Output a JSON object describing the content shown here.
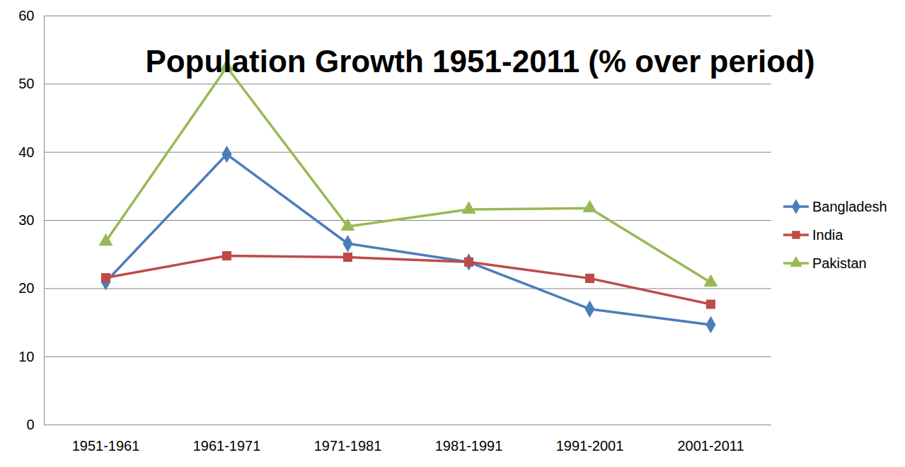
{
  "chart_data": {
    "type": "line",
    "title": "Population Growth 1951-2011 (% over period)",
    "categories": [
      "1951-1961",
      "1961-1971",
      "1971-1981",
      "1981-1991",
      "1991-2001",
      "2001-2011"
    ],
    "series": [
      {
        "name": "Bangladesh",
        "color": "#4a7ebb",
        "marker": "diamond",
        "values": [
          21.0,
          39.7,
          26.6,
          23.9,
          17.0,
          14.7
        ]
      },
      {
        "name": "India",
        "color": "#be4b48",
        "marker": "square",
        "values": [
          21.6,
          24.8,
          24.6,
          23.9,
          21.5,
          17.7
        ]
      },
      {
        "name": "Pakistan",
        "color": "#98b954",
        "marker": "triangle",
        "values": [
          26.9,
          52.5,
          29.1,
          31.6,
          31.8,
          20.9
        ]
      }
    ],
    "ylim": [
      0,
      60
    ],
    "yticks": [
      0,
      10,
      20,
      30,
      40,
      50,
      60
    ],
    "grid": true,
    "legend": "right"
  }
}
